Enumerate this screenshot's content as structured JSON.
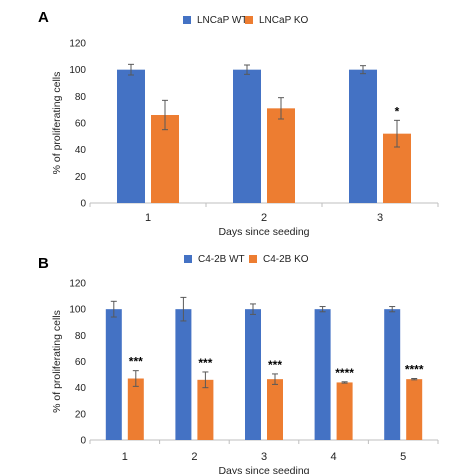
{
  "colors": {
    "wt": "#4472C4",
    "ko": "#ED7D31"
  },
  "chart_data": [
    {
      "type": "bar",
      "panel_label": "A",
      "categories": [
        "1",
        "2",
        "3"
      ],
      "xlabel": "Days since seeding",
      "ylabel": "% of proliferating cells",
      "ylim": [
        0,
        120
      ],
      "yticks": [
        "0",
        "20",
        "40",
        "60",
        "80",
        "100",
        "120"
      ],
      "grid": false,
      "legend_position": "top",
      "series": [
        {
          "name": "LNCaP WT",
          "color": "#4472C4",
          "values": [
            100,
            100,
            100
          ],
          "errors": [
            4,
            3.5,
            3
          ],
          "annotations": [
            "",
            "",
            ""
          ]
        },
        {
          "name": "LNCaP KO",
          "color": "#ED7D31",
          "values": [
            66,
            71,
            52
          ],
          "errors": [
            11,
            8,
            10
          ],
          "annotations": [
            "",
            "",
            "*"
          ]
        }
      ]
    },
    {
      "type": "bar",
      "panel_label": "B",
      "categories": [
        "1",
        "2",
        "3",
        "4",
        "5"
      ],
      "xlabel": "Days since seeding",
      "ylabel": "% of proliferating cells",
      "ylim": [
        0,
        120
      ],
      "yticks": [
        "0",
        "20",
        "40",
        "60",
        "80",
        "100",
        "120"
      ],
      "grid": false,
      "legend_position": "top",
      "series": [
        {
          "name": "C4-2B WT",
          "color": "#4472C4",
          "values": [
            100,
            100,
            100,
            100,
            100
          ],
          "errors": [
            6,
            9,
            4,
            2,
            2
          ],
          "annotations": [
            "",
            "",
            "",
            "",
            ""
          ]
        },
        {
          "name": "C4-2B KO",
          "color": "#ED7D31",
          "values": [
            47,
            46,
            46.5,
            44,
            46.5
          ],
          "errors": [
            6,
            6,
            4,
            0.5,
            0.5
          ],
          "annotations": [
            "***",
            "***",
            "***",
            "****",
            "****"
          ]
        }
      ]
    }
  ]
}
